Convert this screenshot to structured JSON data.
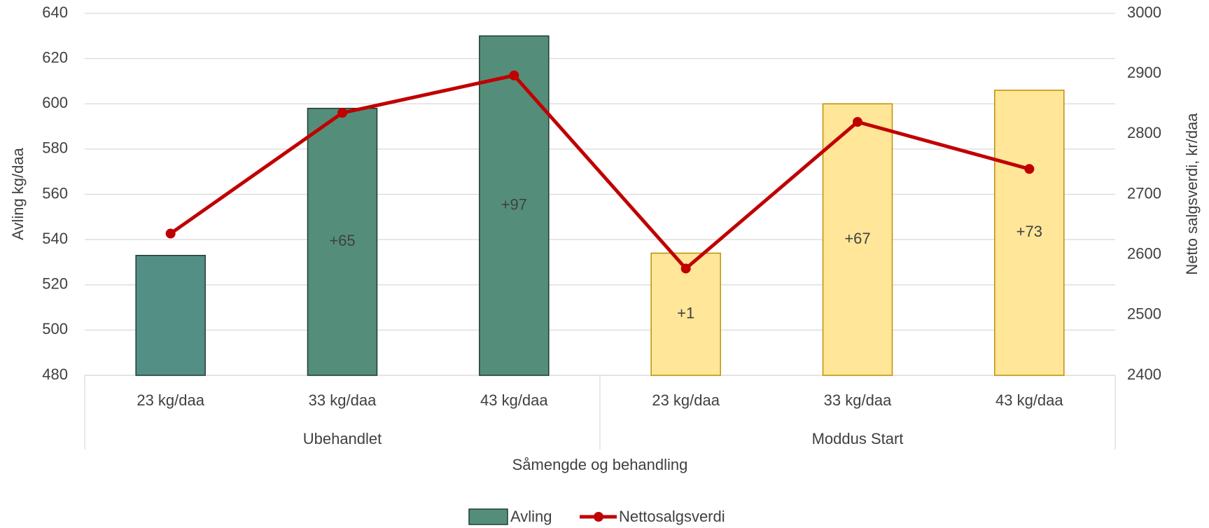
{
  "chart_data": {
    "type": "bar_line",
    "categories": [
      "23 kg/daa",
      "33 kg/daa",
      "43 kg/daa",
      "23 kg/daa",
      "33 kg/daa",
      "43 kg/daa"
    ],
    "group_labels": [
      "Ubehandlet",
      "Moddus Start"
    ],
    "x_label": "Såmengde og behandling",
    "y_label": "Avling kg/daa",
    "y2_label": "Netto salgsverdi, kr/daa",
    "series": [
      {
        "name": "Avling",
        "type": "bar",
        "color": "#548e7a",
        "colors": [
          "#548f86",
          "#548e7a",
          "#548e7a",
          "#ffe699",
          "#ffe699",
          "#ffe699"
        ],
        "edge_colors": [
          "#1f3b36",
          "#1f3b30",
          "#1f3b30",
          "#bf9000",
          "#bf9000",
          "#bf9000"
        ],
        "values": [
          533,
          598,
          630,
          534,
          600,
          606
        ],
        "bar_labels": [
          null,
          "+65",
          "+97",
          "+1",
          "+67",
          "+73"
        ]
      },
      {
        "name": "Nettosalgsverdi",
        "type": "line",
        "axis": "y2",
        "color": "#c00000",
        "values": [
          2635,
          2835,
          2897,
          2577,
          2820,
          2742
        ]
      }
    ],
    "ylim": [
      480,
      640
    ],
    "yticks": [
      480,
      500,
      520,
      540,
      560,
      580,
      600,
      620,
      640
    ],
    "y2lim": [
      2400,
      3000
    ],
    "y2ticks": [
      2400,
      2500,
      2600,
      2700,
      2800,
      2900,
      3000
    ],
    "grid": true,
    "legend": "bottom"
  }
}
